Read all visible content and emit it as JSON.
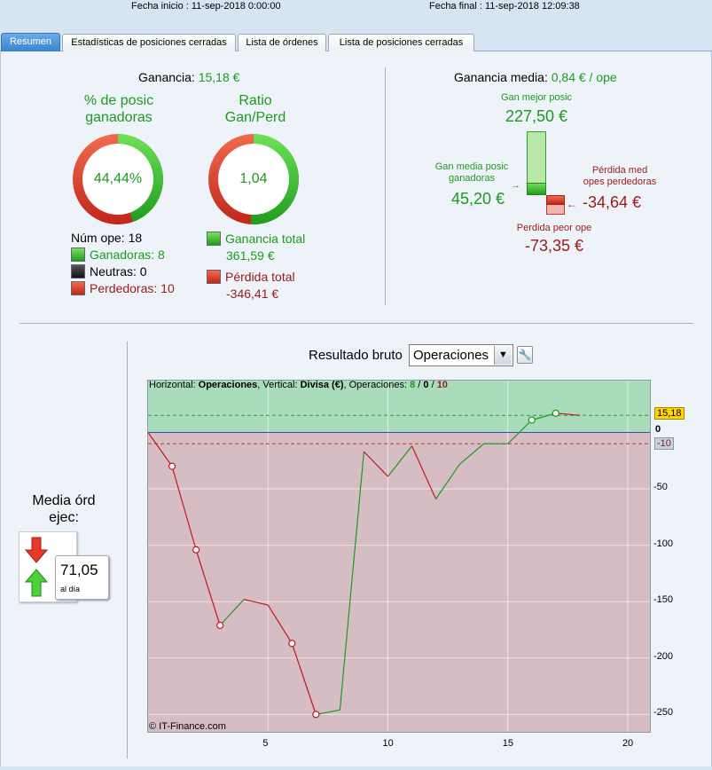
{
  "header": {
    "start_date": "Fecha inicio :  11-sep-2018 0:00:00",
    "end_date": "Fecha final :  11-sep-2018 12:09:38"
  },
  "tabs": [
    {
      "label": "Resumen",
      "active": true
    },
    {
      "label": "Estadísticas de posiciones cerradas",
      "active": false
    },
    {
      "label": "Lista de órdenes",
      "active": false
    },
    {
      "label": "Lista de posiciones cerradas",
      "active": false
    }
  ],
  "summary": {
    "profit_label": "Ganancia:",
    "profit_value": "15,18 €",
    "pct_winners_title_1": "% de posic",
    "pct_winners_title_2": "ganadoras",
    "pct_winners_value": "44,44%",
    "pct_winners_fraction": 0.4444,
    "ratio_title_1": "Ratio",
    "ratio_title_2": "Gan/Perd",
    "ratio_value": "1,04",
    "ratio_fraction": 0.51,
    "num_ops": "Núm ope: 18",
    "winners": "Ganadoras: 8",
    "neutral": "Neutras: 0",
    "losers": "Perdedoras: 10",
    "total_gain_label": "Ganancia total",
    "total_gain_value": "361,59 €",
    "total_loss_label": "Pérdida total",
    "total_loss_value": "-346,41 €"
  },
  "average": {
    "label": "Ganancia media:",
    "value": "0,84 € / ope",
    "best_label": "Gan mejor posic",
    "best_value": "227,50 €",
    "avg_win_label_1": "Gan media posic",
    "avg_win_label_2": "ganadoras",
    "avg_win_value": "45,20 €",
    "avg_loss_label_1": "Pérdida med",
    "avg_loss_label_2": "opes perdedoras",
    "avg_loss_value": "-34,64 €",
    "worst_label": "Perdida peor ope",
    "worst_value": "-73,35 €"
  },
  "orders": {
    "label_1": "Media órd",
    "label_2": "ejec:",
    "value": "71,05",
    "unit": "al día"
  },
  "chart_controls": {
    "title": "Resultado bruto",
    "selected": "Operaciones"
  },
  "chart_header": {
    "prefix": "Horizontal: ",
    "horizontal": "Operaciones",
    "mid": ", Vertical: ",
    "vertical": "Divisa (€)",
    "ops_label": ", Operaciones: ",
    "wins": "8",
    "sep1": " / ",
    "neutral": "0",
    "sep2": " / ",
    "losses": "10"
  },
  "credit": "© IT-Finance.com",
  "colors": {
    "gain": "#1d9a1d",
    "loss": "#c01818",
    "gain_zone": "#a9dcba",
    "loss_zone": "#d6bcc3"
  },
  "chart_data": {
    "type": "line",
    "x": [
      0,
      1,
      2,
      3,
      4,
      5,
      6,
      7,
      8,
      9,
      10,
      11,
      12,
      13,
      14,
      15,
      16,
      17,
      18
    ],
    "values": [
      0,
      -30,
      -104,
      -171,
      -148,
      -153,
      -187,
      -250,
      -246,
      -17,
      -39,
      -12,
      -59,
      -28,
      -10,
      -10,
      11,
      17,
      15.18
    ],
    "markers": [
      1,
      2,
      3,
      6,
      7,
      16,
      17
    ],
    "xlim": [
      0,
      21
    ],
    "ylim": [
      -267,
      46
    ],
    "xticks": [
      5,
      10,
      15,
      20
    ],
    "yticks": [
      0,
      -50,
      -100,
      -150,
      -200,
      -250
    ],
    "xlabel": "",
    "ylabel": "",
    "final_label": "15,18",
    "avg_loss_label": "-10",
    "grid": true
  }
}
